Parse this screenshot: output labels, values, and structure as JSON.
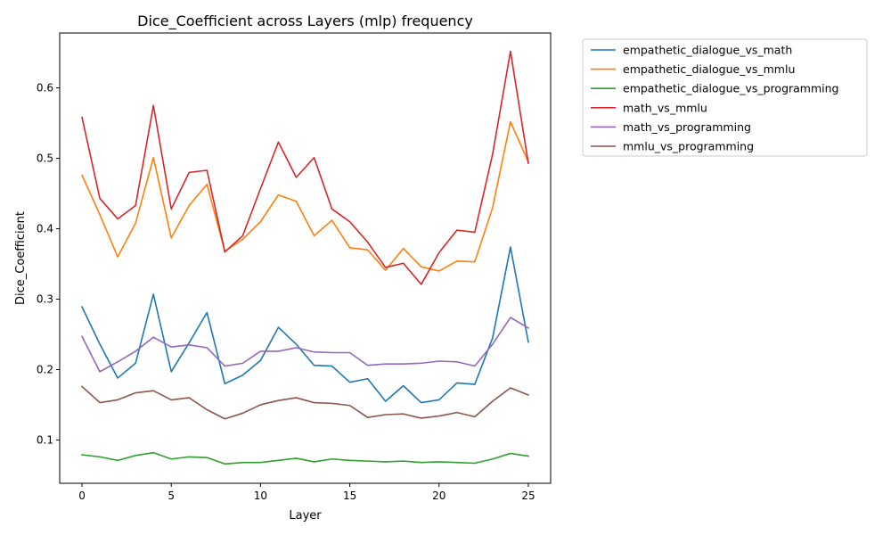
{
  "chart_data": {
    "type": "line",
    "title": "Dice_Coefficient across Layers (mlp) frequency",
    "xlabel": "Layer",
    "ylabel": "Dice_Coefficient",
    "xlim": [
      -1.25,
      26.25
    ],
    "ylim": [
      0.0385,
      0.678
    ],
    "xticks": [
      0,
      5,
      10,
      15,
      20,
      25
    ],
    "yticks": [
      0.1,
      0.2,
      0.3,
      0.4,
      0.5,
      0.6
    ],
    "x": [
      0,
      1,
      2,
      3,
      4,
      5,
      6,
      7,
      8,
      9,
      10,
      11,
      12,
      13,
      14,
      15,
      16,
      17,
      18,
      19,
      20,
      21,
      22,
      23,
      24,
      25
    ],
    "legend_position": "outside-upper-right",
    "series": [
      {
        "name": "empathetic_dialogue_vs_math",
        "color": "#1f77b4",
        "values": [
          0.289,
          0.236,
          0.188,
          0.209,
          0.307,
          0.197,
          0.238,
          0.281,
          0.18,
          0.192,
          0.213,
          0.26,
          0.236,
          0.206,
          0.205,
          0.182,
          0.187,
          0.155,
          0.177,
          0.153,
          0.157,
          0.181,
          0.179,
          0.245,
          0.374,
          0.239
        ]
      },
      {
        "name": "empathetic_dialogue_vs_mmlu",
        "color": "#ff7f0e",
        "values": [
          0.476,
          0.42,
          0.36,
          0.408,
          0.501,
          0.387,
          0.433,
          0.463,
          0.368,
          0.385,
          0.41,
          0.448,
          0.439,
          0.39,
          0.412,
          0.373,
          0.37,
          0.341,
          0.372,
          0.346,
          0.34,
          0.354,
          0.353,
          0.43,
          0.552,
          0.495
        ]
      },
      {
        "name": "empathetic_dialogue_vs_programming",
        "color": "#2ca02c",
        "values": [
          0.079,
          0.076,
          0.071,
          0.078,
          0.082,
          0.073,
          0.076,
          0.075,
          0.066,
          0.068,
          0.068,
          0.071,
          0.074,
          0.069,
          0.073,
          0.071,
          0.07,
          0.069,
          0.07,
          0.068,
          0.069,
          0.068,
          0.067,
          0.073,
          0.081,
          0.077
        ]
      },
      {
        "name": "math_vs_mmlu",
        "color": "#d62728",
        "values": [
          0.558,
          0.443,
          0.414,
          0.433,
          0.575,
          0.428,
          0.48,
          0.483,
          0.367,
          0.39,
          0.457,
          0.523,
          0.473,
          0.501,
          0.428,
          0.41,
          0.381,
          0.345,
          0.351,
          0.321,
          0.366,
          0.398,
          0.395,
          0.506,
          0.652,
          0.493
        ]
      },
      {
        "name": "math_vs_programming",
        "color": "#9467bd",
        "values": [
          0.247,
          0.197,
          0.211,
          0.226,
          0.246,
          0.232,
          0.235,
          0.231,
          0.205,
          0.209,
          0.226,
          0.226,
          0.231,
          0.225,
          0.224,
          0.224,
          0.206,
          0.208,
          0.208,
          0.209,
          0.212,
          0.211,
          0.205,
          0.236,
          0.274,
          0.259
        ]
      },
      {
        "name": "mmlu_vs_programming",
        "color": "#8c564b",
        "values": [
          0.176,
          0.153,
          0.157,
          0.167,
          0.17,
          0.157,
          0.16,
          0.143,
          0.13,
          0.138,
          0.15,
          0.156,
          0.16,
          0.153,
          0.152,
          0.149,
          0.132,
          0.136,
          0.137,
          0.131,
          0.134,
          0.139,
          0.133,
          0.155,
          0.174,
          0.164
        ]
      }
    ]
  }
}
